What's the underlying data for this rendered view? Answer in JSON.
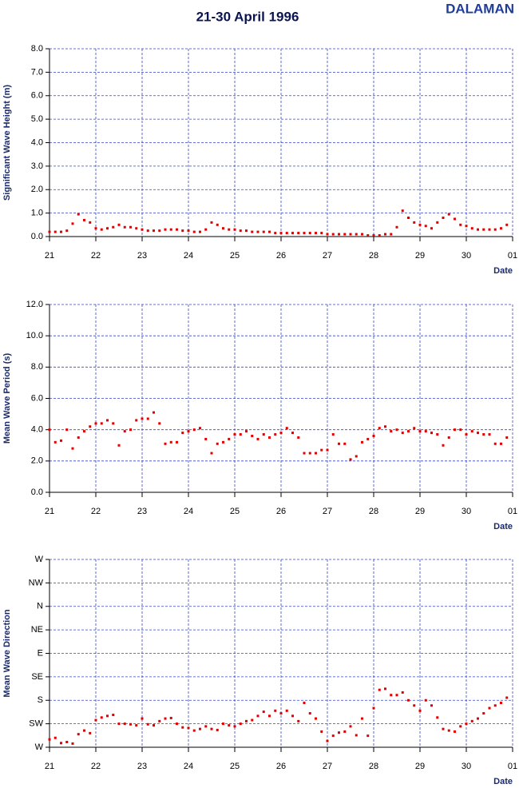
{
  "title": "21-30 April 1996",
  "station": "DALAMAN",
  "chart_data": [
    {
      "type": "scatter",
      "y_label": "Significant Wave Height (m)",
      "x_label": "Date",
      "color": "#e00000",
      "grid": true,
      "xlim": [
        21,
        31
      ],
      "xticks": [
        21,
        22,
        23,
        24,
        25,
        26,
        27,
        28,
        29,
        30,
        {
          "value": 31,
          "label": "01"
        }
      ],
      "ylim": [
        0,
        8
      ],
      "yticks": [
        {
          "value": 0,
          "label": "0.0"
        },
        {
          "value": 1,
          "label": "1.0"
        },
        {
          "value": 2,
          "label": "2.0"
        },
        {
          "value": 3,
          "label": "3.0"
        },
        {
          "value": 4,
          "label": "4.0"
        },
        {
          "value": 5,
          "label": "5.0"
        },
        {
          "value": 6,
          "label": "6.0"
        },
        {
          "value": 7,
          "label": "7.0"
        },
        {
          "value": 8,
          "label": "8.0"
        }
      ],
      "x": [
        21,
        21.125,
        21.25,
        21.375,
        21.5,
        21.625,
        21.75,
        21.875,
        22,
        22.125,
        22.25,
        22.375,
        22.5,
        22.625,
        22.75,
        22.875,
        23,
        23.125,
        23.25,
        23.375,
        23.5,
        23.625,
        23.75,
        23.875,
        24,
        24.125,
        24.25,
        24.375,
        24.5,
        24.625,
        24.75,
        24.875,
        25,
        25.125,
        25.25,
        25.375,
        25.5,
        25.625,
        25.75,
        25.875,
        26,
        26.125,
        26.25,
        26.375,
        26.5,
        26.625,
        26.75,
        26.875,
        27,
        27.125,
        27.25,
        27.375,
        27.5,
        27.625,
        27.75,
        27.875,
        28,
        28.125,
        28.25,
        28.375,
        28.5,
        28.625,
        28.75,
        28.875,
        29,
        29.125,
        29.25,
        29.375,
        29.5,
        29.625,
        29.75,
        29.875,
        30,
        30.125,
        30.25,
        30.375,
        30.5,
        30.625,
        30.75,
        30.875
      ],
      "values": [
        0.2,
        0.2,
        0.2,
        0.25,
        0.55,
        0.95,
        0.7,
        0.6,
        0.35,
        0.3,
        0.35,
        0.4,
        0.5,
        0.4,
        0.4,
        0.35,
        0.3,
        0.25,
        0.25,
        0.25,
        0.3,
        0.3,
        0.3,
        0.25,
        0.25,
        0.2,
        0.2,
        0.3,
        0.6,
        0.5,
        0.35,
        0.3,
        0.3,
        0.25,
        0.25,
        0.2,
        0.2,
        0.2,
        0.2,
        0.15,
        0.15,
        0.15,
        0.15,
        0.15,
        0.15,
        0.15,
        0.15,
        0.15,
        0.1,
        0.1,
        0.1,
        0.1,
        0.1,
        0.1,
        0.1,
        0.05,
        0.05,
        0.05,
        0.1,
        0.1,
        0.4,
        1.1,
        0.8,
        0.6,
        0.5,
        0.45,
        0.35,
        0.6,
        0.8,
        0.95,
        0.75,
        0.5,
        0.45,
        0.35,
        0.3,
        0.3,
        0.3,
        0.3,
        0.35,
        0.5
      ]
    },
    {
      "type": "scatter",
      "y_label": "Mean Wave Period (s)",
      "x_label": "Date",
      "color": "#e00000",
      "grid": true,
      "xlim": [
        21,
        31
      ],
      "xticks": [
        21,
        22,
        23,
        24,
        25,
        26,
        27,
        28,
        29,
        30,
        {
          "value": 31,
          "label": "01"
        }
      ],
      "ylim": [
        0,
        12
      ],
      "yticks": [
        {
          "value": 0,
          "label": "0.0"
        },
        {
          "value": 2,
          "label": "2.0"
        },
        {
          "value": 4,
          "label": "4.0"
        },
        {
          "value": 6,
          "label": "6.0"
        },
        {
          "value": 8,
          "label": "8.0"
        },
        {
          "value": 10,
          "label": "10.0"
        },
        {
          "value": 12,
          "label": "12.0"
        }
      ],
      "x": [
        21,
        21.125,
        21.25,
        21.375,
        21.5,
        21.625,
        21.75,
        21.875,
        22,
        22.125,
        22.25,
        22.375,
        22.5,
        22.625,
        22.75,
        22.875,
        23,
        23.125,
        23.25,
        23.375,
        23.5,
        23.625,
        23.75,
        23.875,
        24,
        24.125,
        24.25,
        24.375,
        24.5,
        24.625,
        24.75,
        24.875,
        25,
        25.125,
        25.25,
        25.375,
        25.5,
        25.625,
        25.75,
        25.875,
        26,
        26.125,
        26.25,
        26.375,
        26.5,
        26.625,
        26.75,
        26.875,
        27,
        27.125,
        27.25,
        27.375,
        27.5,
        27.625,
        27.75,
        27.875,
        28,
        28.125,
        28.25,
        28.375,
        28.5,
        28.625,
        28.75,
        28.875,
        29,
        29.125,
        29.25,
        29.375,
        29.5,
        29.625,
        29.75,
        29.875,
        30,
        30.125,
        30.25,
        30.375,
        30.5,
        30.625,
        30.75,
        30.875
      ],
      "values": [
        4.0,
        3.2,
        3.3,
        4.0,
        2.8,
        3.5,
        3.9,
        4.2,
        4.4,
        4.4,
        4.6,
        4.4,
        3.0,
        3.9,
        4.0,
        4.6,
        4.7,
        4.7,
        5.1,
        4.4,
        3.1,
        3.2,
        3.2,
        3.8,
        3.9,
        4.0,
        4.1,
        3.4,
        2.5,
        3.1,
        3.2,
        3.4,
        3.7,
        3.7,
        3.9,
        3.6,
        3.4,
        3.7,
        3.5,
        3.7,
        3.8,
        4.1,
        3.8,
        3.5,
        2.5,
        2.5,
        2.5,
        2.7,
        2.7,
        3.7,
        3.1,
        3.1,
        2.1,
        2.3,
        3.2,
        3.4,
        3.6,
        4.1,
        4.2,
        3.9,
        4.0,
        3.8,
        3.9,
        4.1,
        3.9,
        3.9,
        3.8,
        3.7,
        3.0,
        3.5,
        4.0,
        4.0,
        3.7,
        3.9,
        3.8,
        3.7,
        3.7,
        3.1,
        3.1,
        3.5
      ]
    },
    {
      "type": "scatter",
      "y_label": "Mean Wave Direction",
      "x_label": "Date",
      "color": "#e00000",
      "grid": true,
      "xlim": [
        21,
        31
      ],
      "xticks": [
        21,
        22,
        23,
        24,
        25,
        26,
        27,
        28,
        29,
        30,
        {
          "value": 31,
          "label": "01"
        }
      ],
      "ylim": [
        270,
        -90
      ],
      "yticks": [
        {
          "value": 270,
          "label": "W"
        },
        {
          "value": 225,
          "label": "SW"
        },
        {
          "value": 180,
          "label": "S"
        },
        {
          "value": 135,
          "label": "SE"
        },
        {
          "value": 90,
          "label": "E"
        },
        {
          "value": 45,
          "label": "NE"
        },
        {
          "value": 0,
          "label": "N"
        },
        {
          "value": -45,
          "label": "NW"
        },
        {
          "value": -90,
          "label": "W"
        }
      ],
      "x": [
        21,
        21.125,
        21.25,
        21.375,
        21.5,
        21.625,
        21.75,
        21.875,
        22,
        22.125,
        22.25,
        22.375,
        22.5,
        22.625,
        22.75,
        22.875,
        23,
        23.125,
        23.25,
        23.375,
        23.5,
        23.625,
        23.75,
        23.875,
        24,
        24.125,
        24.25,
        24.375,
        24.5,
        24.625,
        24.75,
        24.875,
        25,
        25.125,
        25.25,
        25.375,
        25.5,
        25.625,
        25.75,
        25.875,
        26,
        26.125,
        26.25,
        26.375,
        26.5,
        26.625,
        26.75,
        26.875,
        27,
        27.125,
        27.25,
        27.375,
        27.5,
        27.625,
        27.75,
        27.875,
        28,
        28.125,
        28.25,
        28.375,
        28.5,
        28.625,
        28.75,
        28.875,
        29,
        29.125,
        29.25,
        29.375,
        29.5,
        29.625,
        29.75,
        29.875,
        30,
        30.125,
        30.25,
        30.375,
        30.5,
        30.625,
        30.75,
        30.875
      ],
      "values": [
        255,
        252,
        262,
        260,
        263,
        245,
        238,
        243,
        218,
        213,
        210,
        208,
        225,
        225,
        226,
        228,
        215,
        226,
        228,
        220,
        215,
        214,
        225,
        232,
        233,
        238,
        235,
        230,
        235,
        237,
        225,
        228,
        230,
        225,
        220,
        218,
        210,
        202,
        210,
        200,
        205,
        200,
        210,
        220,
        185,
        205,
        215,
        240,
        258,
        248,
        242,
        240,
        230,
        247,
        215,
        248,
        195,
        160,
        158,
        170,
        170,
        165,
        180,
        190,
        200,
        180,
        190,
        213,
        235,
        238,
        240,
        230,
        225,
        220,
        215,
        205,
        195,
        190,
        185,
        175
      ]
    }
  ]
}
